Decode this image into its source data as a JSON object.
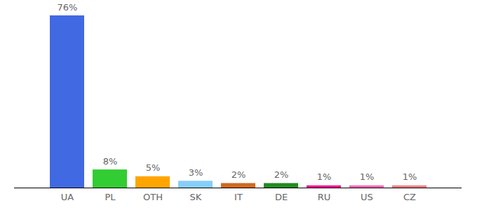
{
  "chart_data": {
    "type": "bar",
    "categories": [
      "UA",
      "PL",
      "OTH",
      "SK",
      "IT",
      "DE",
      "RU",
      "US",
      "CZ"
    ],
    "values": [
      76,
      8,
      5,
      3,
      2,
      2,
      1,
      1,
      1
    ],
    "value_labels": [
      "76%",
      "8%",
      "5%",
      "3%",
      "2%",
      "2%",
      "1%",
      "1%",
      "1%"
    ],
    "colors": [
      "#4169e1",
      "#32cd32",
      "#ffa500",
      "#87cefa",
      "#d2691e",
      "#228b22",
      "#ff1493",
      "#ff69b4",
      "#f08080"
    ],
    "ylim": [
      0,
      76
    ],
    "yticks": [],
    "data_labels": true,
    "tick_labels": "x",
    "grid": false
  }
}
